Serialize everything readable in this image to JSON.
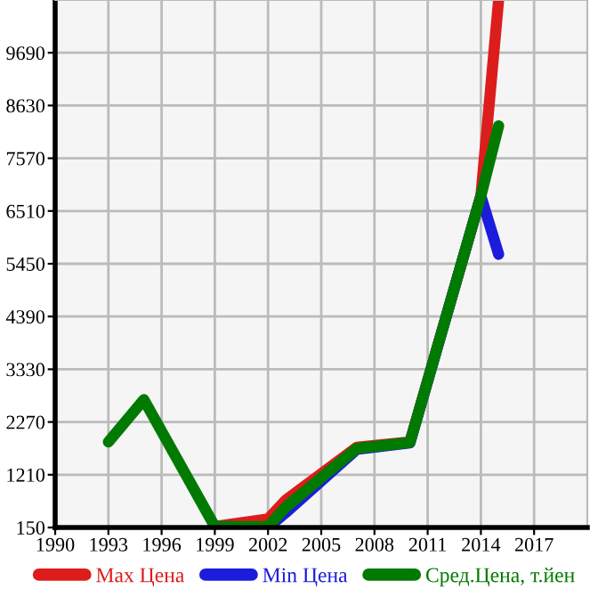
{
  "chart_data": {
    "type": "line",
    "x": [
      1993,
      1995,
      1999,
      2002,
      2003,
      2007,
      2010,
      2014,
      2015
    ],
    "series": [
      {
        "name": "Max Цена",
        "color": "#dd1c1c",
        "values": [
          null,
          null,
          170,
          320,
          700,
          1760,
          1870,
          6810,
          10750
        ]
      },
      {
        "name": "Min Цена",
        "color": "#1c1cdd",
        "values": [
          null,
          null,
          170,
          150,
          450,
          1720,
          1850,
          6810,
          5640
        ]
      },
      {
        "name": "Сред.Цена, т.йен",
        "color": "#007a00",
        "values": [
          1870,
          2720,
          170,
          170,
          560,
          1740,
          1860,
          6810,
          8220
        ]
      }
    ],
    "xlim": [
      1990,
      2020
    ],
    "xticks": [
      1990,
      1993,
      1996,
      1999,
      2002,
      2005,
      2008,
      2011,
      2014,
      2017
    ],
    "ylim": [
      150,
      10750
    ],
    "yticks": [
      150,
      1210,
      2270,
      3330,
      4390,
      5450,
      6510,
      7570,
      8630,
      9690
    ],
    "grid": true,
    "legend": "bottom",
    "marker": "none",
    "line_style": "solid"
  }
}
